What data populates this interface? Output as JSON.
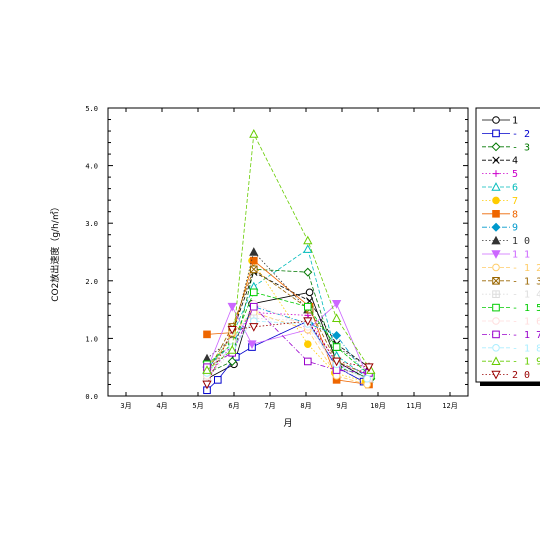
{
  "chart_data": {
    "type": "line",
    "title": "",
    "xlabel": "月",
    "ylabel": "CO2放出速度（g/h/㎡）",
    "x_ticks": [
      "3月",
      "4月",
      "5月",
      "6月",
      "7月",
      "8月",
      "9月",
      "10月",
      "11月",
      "12月"
    ],
    "xlim": [
      0,
      10
    ],
    "ylim": [
      0,
      5
    ],
    "y_ticks": [
      "0.0",
      "1.0",
      "2.0",
      "3.0",
      "4.0",
      "5.0"
    ],
    "y_tick_values": [
      0,
      1,
      2,
      3,
      4,
      5
    ],
    "grid": false,
    "legend_position": "right",
    "series": [
      {
        "name": "1",
        "color": "#000000",
        "marker": "circle-open",
        "dash": "solid",
        "x": [
          2.75,
          3.5,
          4.0,
          5.6,
          6.35,
          7.2
        ],
        "y": [
          0.3,
          0.55,
          1.6,
          1.8,
          0.6,
          0.3
        ]
      },
      {
        "name": "- 2",
        "color": "#0000cc",
        "marker": "square-open",
        "dash": "solid",
        "x": [
          2.75,
          3.05,
          3.55,
          4.0,
          5.55,
          6.35,
          7.1
        ],
        "y": [
          0.1,
          0.28,
          0.68,
          0.85,
          1.3,
          0.5,
          0.25
        ]
      },
      {
        "name": "- 3",
        "color": "#007700",
        "marker": "diamond-open",
        "dash": "dashed",
        "x": [
          2.75,
          3.45,
          4.05,
          5.55,
          6.4,
          7.3
        ],
        "y": [
          0.4,
          0.6,
          2.2,
          2.15,
          0.5,
          0.3
        ]
      },
      {
        "name": "4",
        "color": "#000000",
        "marker": "x",
        "dash": "dashed",
        "x": [
          2.75,
          3.45,
          4.05,
          5.6,
          6.35,
          7.25
        ],
        "y": [
          0.35,
          1.1,
          2.15,
          1.65,
          0.9,
          0.5
        ]
      },
      {
        "name": "5",
        "color": "#cc00cc",
        "marker": "plus",
        "dash": "dotted",
        "x": [
          2.75,
          3.45,
          4.0,
          5.55,
          6.35,
          7.25
        ],
        "y": [
          0.3,
          0.9,
          1.45,
          1.4,
          0.55,
          0.4
        ]
      },
      {
        "name": "6",
        "color": "#00bbbb",
        "marker": "triangle-open",
        "dash": "dashed",
        "x": [
          2.75,
          3.45,
          4.05,
          5.55,
          6.35,
          7.25
        ],
        "y": [
          0.45,
          1.05,
          1.9,
          2.55,
          0.7,
          0.3
        ]
      },
      {
        "name": "7",
        "color": "#ffcc00",
        "marker": "circle-filled",
        "dash": "dotted",
        "x": [
          2.75,
          3.45,
          4.0,
          5.55,
          6.3,
          7.15
        ],
        "y": [
          0.5,
          1.0,
          2.35,
          0.9,
          0.4,
          0.25
        ]
      },
      {
        "name": "8",
        "color": "#ee6600",
        "marker": "square-filled",
        "dash": "solid",
        "x": [
          2.75,
          3.45,
          4.05,
          5.6,
          6.35,
          7.25
        ],
        "y": [
          1.07,
          1.1,
          2.35,
          1.55,
          0.28,
          0.2
        ]
      },
      {
        "name": "9",
        "color": "#0099cc",
        "marker": "diamond-filled",
        "dash": "dashdot",
        "x": [
          2.75,
          3.45,
          4.05,
          5.6,
          6.35,
          7.25
        ],
        "y": [
          0.5,
          0.9,
          1.55,
          1.25,
          1.05,
          0.3
        ]
      },
      {
        "name": "1 0",
        "color": "#333333",
        "marker": "triangle-filled",
        "dash": "dotted",
        "x": [
          2.75,
          3.45,
          4.05,
          5.55,
          6.35,
          7.25
        ],
        "y": [
          0.65,
          1.0,
          2.5,
          1.5,
          0.85,
          0.5
        ]
      },
      {
        "name": "1 1",
        "color": "#cc66ff",
        "marker": "triangle-down-filled",
        "dash": "solid",
        "x": [
          2.75,
          3.45,
          4.0,
          5.55,
          6.35,
          7.2
        ],
        "y": [
          0.45,
          1.55,
          0.9,
          1.15,
          1.6,
          0.35
        ]
      },
      {
        "name": "- 1 2",
        "color": "#ffcc66",
        "marker": "circle-open",
        "dash": "dashed",
        "x": [
          2.75,
          3.45,
          4.05,
          5.55,
          6.35,
          7.2
        ],
        "y": [
          0.35,
          1.1,
          1.45,
          1.15,
          0.35,
          0.2
        ]
      },
      {
        "name": "- 1 3",
        "color": "#996600",
        "marker": "square-x",
        "dash": "dashed",
        "x": [
          2.75,
          3.45,
          4.05,
          5.6,
          6.35,
          7.3
        ],
        "y": [
          0.4,
          1.2,
          2.2,
          1.5,
          0.6,
          0.35
        ]
      },
      {
        "name": "- 1 4",
        "color": "#dddddd",
        "marker": "square-plus",
        "dash": "dotted",
        "x": [
          2.75,
          3.45,
          4.05,
          5.55,
          6.35,
          7.25
        ],
        "y": [
          0.3,
          0.8,
          1.35,
          1.3,
          0.45,
          0.3
        ]
      },
      {
        "name": "- 1 5",
        "color": "#00cc00",
        "marker": "square-open",
        "dash": "dashed",
        "x": [
          2.75,
          3.45,
          4.05,
          5.55,
          6.35,
          7.3
        ],
        "y": [
          0.55,
          0.9,
          1.8,
          1.55,
          0.85,
          0.35
        ]
      },
      {
        "name": "- 1 6",
        "color": "#ffdddd",
        "marker": "circle-open",
        "dash": "dashed",
        "x": [
          2.75,
          3.45,
          4.05,
          5.55,
          6.35,
          7.25
        ],
        "y": [
          0.35,
          0.95,
          1.6,
          1.2,
          0.5,
          0.3
        ]
      },
      {
        "name": "- 1 7",
        "color": "#9900cc",
        "marker": "square-open",
        "dash": "dashdot",
        "x": [
          2.75,
          3.45,
          4.05,
          5.55,
          6.35,
          7.25
        ],
        "y": [
          0.5,
          0.75,
          1.55,
          0.6,
          0.45,
          0.4
        ]
      },
      {
        "name": "- 1 8",
        "color": "#aaeeff",
        "marker": "circle-open",
        "dash": "dashed",
        "x": [
          2.75,
          3.45,
          4.05,
          5.55,
          6.35,
          7.2
        ],
        "y": [
          0.4,
          0.85,
          1.3,
          1.25,
          0.55,
          0.3
        ]
      },
      {
        "name": "- 1 9",
        "color": "#66cc00",
        "marker": "triangle-open",
        "dash": "dashed",
        "x": [
          2.75,
          3.45,
          4.05,
          5.55,
          6.35,
          7.3
        ],
        "y": [
          0.45,
          0.8,
          4.55,
          2.7,
          1.35,
          0.45
        ]
      },
      {
        "name": "2 0",
        "color": "#990000",
        "marker": "triangle-down-open",
        "dash": "dotted",
        "x": [
          2.75,
          3.45,
          4.05,
          5.55,
          6.35,
          7.25
        ],
        "y": [
          0.2,
          1.15,
          1.2,
          1.3,
          0.6,
          0.5
        ]
      }
    ]
  }
}
